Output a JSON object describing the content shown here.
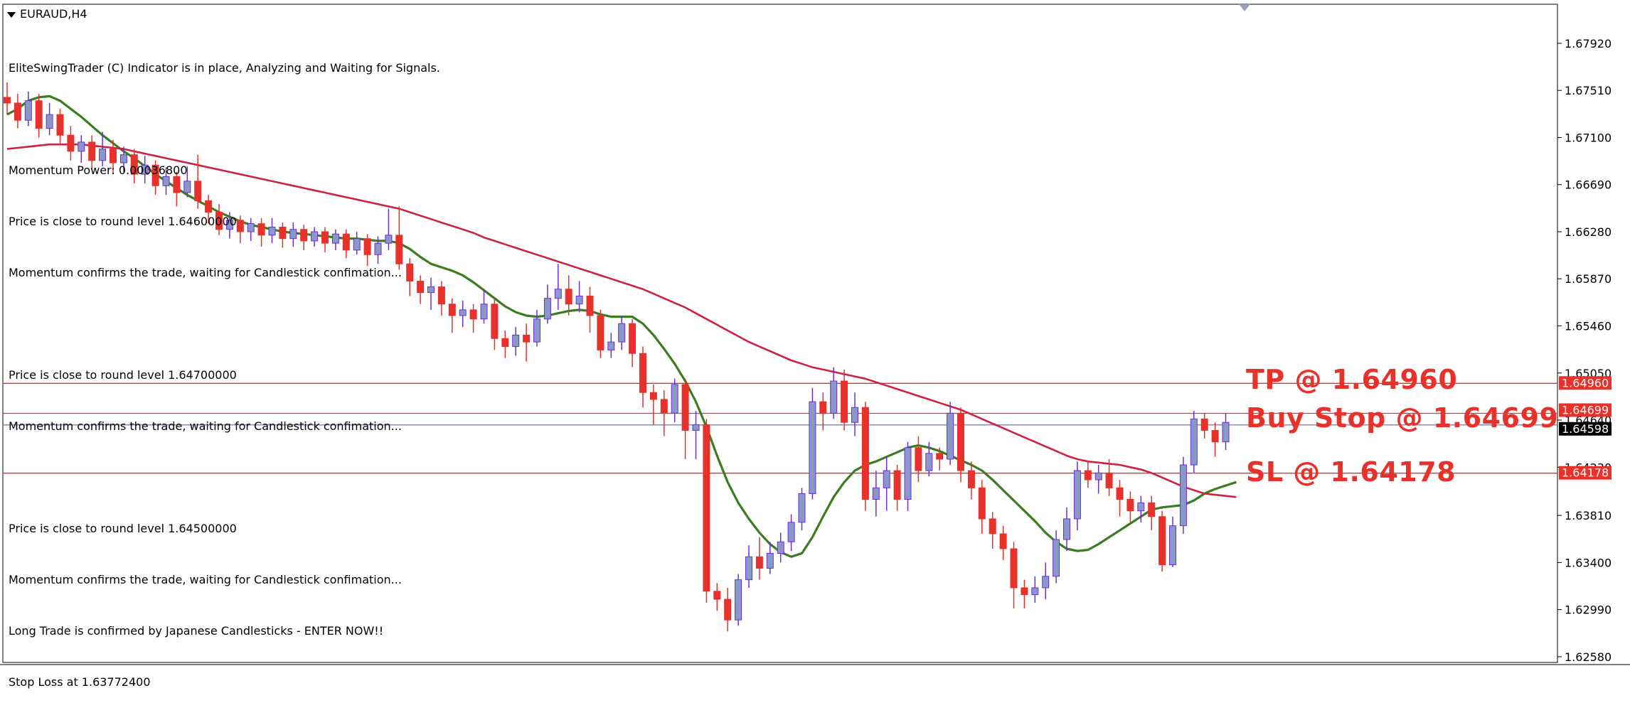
{
  "window": {
    "symbol_title": "EURAUD,H4"
  },
  "info_lines": [
    "EliteSwingTrader (C) Indicator is in place, Analyzing and Waiting for Signals.",
    "",
    "Momentum Power: 0.00036800",
    "Price is close to round level 1.64600000",
    "Momentum confirms the trade, waiting for Candlestick confimation...",
    "",
    "Price is close to round level 1.64700000",
    "Momentum confirms the trade, waiting for Candlestick confimation...",
    "",
    "Price is close to round level 1.64500000",
    "Momentum confirms the trade, waiting for Candlestick confimation...",
    "Long Trade is confirmed by Japanese Candlesticks - ENTER NOW!!",
    "Stop Loss at 1.63772400"
  ],
  "annotations": {
    "tp": "TP @ 1.64960",
    "buy_stop": "Buy Stop @ 1.64699",
    "sl": "SL @ 1.64178"
  },
  "colors": {
    "background": "#ffffff",
    "bull_candle_body": "#8a97c9",
    "bull_candle_wick": "#6a2fd8",
    "bear_candle": "#e8312a",
    "fast_ma": "#3a7d1e",
    "slow_ma": "#cc2244",
    "level_line": "#e8312a",
    "bid_line": "#7b83b8",
    "annotation_text": "#e8312a"
  },
  "chart_data": {
    "type": "candlestick",
    "symbol": "EURAUD",
    "timeframe": "H4",
    "ylim": [
      1.6253,
      1.6826
    ],
    "y_ticks": [
      "1.67920",
      "1.67510",
      "1.67100",
      "1.66690",
      "1.66280",
      "1.65870",
      "1.65460",
      "1.65050",
      "1.64640",
      "1.64230",
      "1.63810",
      "1.63400",
      "1.62990",
      "1.62580"
    ],
    "levels": [
      {
        "label": "1.64960",
        "value": 1.6496,
        "color": "#e8312a",
        "text_color": "#ffffff"
      },
      {
        "label": "1.64699",
        "value": 1.64699,
        "color": "#e8312a",
        "text_color": "#ffffff"
      },
      {
        "label": "1.64598",
        "value": 1.64598,
        "color": "#000000",
        "text_color": "#ffffff"
      },
      {
        "label": "1.64178",
        "value": 1.64178,
        "color": "#e8312a",
        "text_color": "#ffffff"
      }
    ],
    "candles": [
      [
        1.6745,
        1.674,
        1.6758,
        1.673
      ],
      [
        1.674,
        1.6725,
        1.6748,
        1.6718
      ],
      [
        1.6725,
        1.6742,
        1.675,
        1.672
      ],
      [
        1.6742,
        1.6718,
        1.6748,
        1.671
      ],
      [
        1.6718,
        1.673,
        1.674,
        1.6712
      ],
      [
        1.673,
        1.6712,
        1.6735,
        1.6705
      ],
      [
        1.6712,
        1.6698,
        1.672,
        1.669
      ],
      [
        1.6698,
        1.6706,
        1.6712,
        1.6688
      ],
      [
        1.6706,
        1.669,
        1.6712,
        1.6682
      ],
      [
        1.669,
        1.67,
        1.6715,
        1.6685
      ],
      [
        1.67,
        1.6688,
        1.6708,
        1.6678
      ],
      [
        1.6688,
        1.6695,
        1.6702,
        1.668
      ],
      [
        1.6695,
        1.6678,
        1.67,
        1.667
      ],
      [
        1.6678,
        1.6686,
        1.6694,
        1.667
      ],
      [
        1.6686,
        1.6668,
        1.669,
        1.666
      ],
      [
        1.6668,
        1.6676,
        1.6684,
        1.666
      ],
      [
        1.6676,
        1.6662,
        1.668,
        1.665
      ],
      [
        1.6662,
        1.6672,
        1.6685,
        1.6658
      ],
      [
        1.6672,
        1.6655,
        1.6695,
        1.6648
      ],
      [
        1.6655,
        1.6645,
        1.666,
        1.6635
      ],
      [
        1.6645,
        1.663,
        1.6652,
        1.6625
      ],
      [
        1.663,
        1.6638,
        1.6645,
        1.6622
      ],
      [
        1.6638,
        1.6628,
        1.6642,
        1.6618
      ],
      [
        1.6628,
        1.6635,
        1.664,
        1.662
      ],
      [
        1.6635,
        1.6625,
        1.664,
        1.6615
      ],
      [
        1.6625,
        1.6632,
        1.664,
        1.6618
      ],
      [
        1.6632,
        1.6622,
        1.6636,
        1.6614
      ],
      [
        1.6622,
        1.663,
        1.6636,
        1.6615
      ],
      [
        1.663,
        1.662,
        1.6634,
        1.6612
      ],
      [
        1.662,
        1.6628,
        1.6632,
        1.6615
      ],
      [
        1.6628,
        1.6618,
        1.6632,
        1.661
      ],
      [
        1.6618,
        1.6626,
        1.663,
        1.6612
      ],
      [
        1.6626,
        1.6612,
        1.663,
        1.6605
      ],
      [
        1.6612,
        1.6622,
        1.6628,
        1.6608
      ],
      [
        1.6622,
        1.6608,
        1.6626,
        1.6598
      ],
      [
        1.6608,
        1.6618,
        1.6624,
        1.66
      ],
      [
        1.6618,
        1.6625,
        1.6648,
        1.6612
      ],
      [
        1.6625,
        1.66,
        1.665,
        1.6595
      ],
      [
        1.66,
        1.6585,
        1.6605,
        1.6572
      ],
      [
        1.6585,
        1.6575,
        1.659,
        1.6565
      ],
      [
        1.6575,
        1.658,
        1.6588,
        1.656
      ],
      [
        1.658,
        1.6565,
        1.6585,
        1.6555
      ],
      [
        1.6565,
        1.6555,
        1.657,
        1.654
      ],
      [
        1.6555,
        1.656,
        1.6568,
        1.6545
      ],
      [
        1.656,
        1.6552,
        1.6565,
        1.654
      ],
      [
        1.6552,
        1.6565,
        1.6578,
        1.6548
      ],
      [
        1.6565,
        1.6535,
        1.657,
        1.6525
      ],
      [
        1.6535,
        1.6528,
        1.6542,
        1.6518
      ],
      [
        1.6528,
        1.6538,
        1.6545,
        1.652
      ],
      [
        1.6538,
        1.6532,
        1.6548,
        1.6515
      ],
      [
        1.6532,
        1.6552,
        1.656,
        1.6528
      ],
      [
        1.6552,
        1.657,
        1.6582,
        1.6548
      ],
      [
        1.657,
        1.6578,
        1.66,
        1.656
      ],
      [
        1.6578,
        1.6565,
        1.659,
        1.6555
      ],
      [
        1.6565,
        1.6572,
        1.6585,
        1.6558
      ],
      [
        1.6572,
        1.6555,
        1.658,
        1.654
      ],
      [
        1.6555,
        1.6525,
        1.656,
        1.6518
      ],
      [
        1.6525,
        1.6532,
        1.654,
        1.6518
      ],
      [
        1.6532,
        1.6548,
        1.6555,
        1.6525
      ],
      [
        1.6548,
        1.6522,
        1.6552,
        1.651
      ],
      [
        1.6522,
        1.6488,
        1.6528,
        1.6475
      ],
      [
        1.6488,
        1.6482,
        1.6495,
        1.646
      ],
      [
        1.6482,
        1.647,
        1.649,
        1.645
      ],
      [
        1.647,
        1.6495,
        1.65,
        1.6462
      ],
      [
        1.6495,
        1.6455,
        1.65,
        1.643
      ],
      [
        1.6455,
        1.646,
        1.6472,
        1.643
      ],
      [
        1.646,
        1.6315,
        1.6465,
        1.6305
      ],
      [
        1.6315,
        1.6308,
        1.6322,
        1.6298
      ],
      [
        1.6308,
        1.629,
        1.6318,
        1.628
      ],
      [
        1.629,
        1.6325,
        1.633,
        1.6285
      ],
      [
        1.6325,
        1.6345,
        1.6355,
        1.6318
      ],
      [
        1.6345,
        1.6335,
        1.6362,
        1.6325
      ],
      [
        1.6335,
        1.6348,
        1.6358,
        1.633
      ],
      [
        1.6348,
        1.6358,
        1.6366,
        1.634
      ],
      [
        1.6358,
        1.6375,
        1.6382,
        1.635
      ],
      [
        1.6375,
        1.64,
        1.6405,
        1.6368
      ],
      [
        1.64,
        1.648,
        1.6492,
        1.6395
      ],
      [
        1.648,
        1.647,
        1.6488,
        1.6455
      ],
      [
        1.647,
        1.6498,
        1.651,
        1.6465
      ],
      [
        1.6498,
        1.6462,
        1.6508,
        1.6455
      ],
      [
        1.6462,
        1.6475,
        1.6488,
        1.645
      ],
      [
        1.6475,
        1.6395,
        1.648,
        1.6385
      ],
      [
        1.6395,
        1.6405,
        1.642,
        1.638
      ],
      [
        1.6405,
        1.642,
        1.6432,
        1.6385
      ],
      [
        1.642,
        1.6395,
        1.6425,
        1.6385
      ],
      [
        1.6395,
        1.644,
        1.6445,
        1.6385
      ],
      [
        1.644,
        1.642,
        1.645,
        1.641
      ],
      [
        1.642,
        1.6435,
        1.6445,
        1.6415
      ],
      [
        1.6435,
        1.643,
        1.644,
        1.642
      ],
      [
        1.643,
        1.647,
        1.648,
        1.6425
      ],
      [
        1.647,
        1.642,
        1.6475,
        1.641
      ],
      [
        1.642,
        1.6405,
        1.6428,
        1.6395
      ],
      [
        1.6405,
        1.6378,
        1.6412,
        1.6365
      ],
      [
        1.6378,
        1.6365,
        1.6384,
        1.6352
      ],
      [
        1.6365,
        1.6352,
        1.6372,
        1.6342
      ],
      [
        1.6352,
        1.6318,
        1.6358,
        1.63
      ],
      [
        1.6318,
        1.6312,
        1.6325,
        1.63
      ],
      [
        1.6312,
        1.6318,
        1.6328,
        1.6305
      ],
      [
        1.6318,
        1.6328,
        1.634,
        1.6308
      ],
      [
        1.6328,
        1.636,
        1.6368,
        1.6322
      ],
      [
        1.636,
        1.6378,
        1.6388,
        1.635
      ],
      [
        1.6378,
        1.642,
        1.6428,
        1.6368
      ],
      [
        1.642,
        1.6412,
        1.6428,
        1.6405
      ],
      [
        1.6412,
        1.6418,
        1.6425,
        1.64
      ],
      [
        1.6418,
        1.6405,
        1.643,
        1.6398
      ],
      [
        1.6405,
        1.6395,
        1.6412,
        1.638
      ],
      [
        1.6395,
        1.6385,
        1.6402,
        1.6375
      ],
      [
        1.6385,
        1.6392,
        1.6398,
        1.6375
      ],
      [
        1.6392,
        1.638,
        1.6398,
        1.6368
      ],
      [
        1.638,
        1.6338,
        1.6385,
        1.6332
      ],
      [
        1.6338,
        1.6372,
        1.638,
        1.6336
      ],
      [
        1.6372,
        1.6425,
        1.6432,
        1.6365
      ],
      [
        1.6425,
        1.6465,
        1.6472,
        1.6418
      ],
      [
        1.6465,
        1.6455,
        1.647,
        1.6448
      ],
      [
        1.6455,
        1.6445,
        1.6462,
        1.6432
      ],
      [
        1.6445,
        1.6462,
        1.647,
        1.6438
      ]
    ],
    "series": [
      {
        "name": "",
        "color": "#3a7d1e",
        "values": [
          1.673,
          1.6735,
          1.6742,
          1.6745,
          1.6746,
          1.6742,
          1.6735,
          1.6728,
          1.672,
          1.6712,
          1.6705,
          1.6698,
          1.6692,
          1.6685,
          1.6678,
          1.6672,
          1.6666,
          1.666,
          1.6655,
          1.665,
          1.6645,
          1.6641,
          1.6637,
          1.6634,
          1.6632,
          1.663,
          1.6628,
          1.6627,
          1.6626,
          1.6625,
          1.6624,
          1.6623,
          1.6622,
          1.6622,
          1.6621,
          1.662,
          1.662,
          1.6618,
          1.6613,
          1.6606,
          1.66,
          1.6597,
          1.6594,
          1.659,
          1.6584,
          1.6577,
          1.657,
          1.6563,
          1.6558,
          1.6555,
          1.6554,
          1.6555,
          1.6557,
          1.6559,
          1.656,
          1.6559,
          1.6556,
          1.6554,
          1.6554,
          1.6554,
          1.6548,
          1.6538,
          1.6526,
          1.6513,
          1.6498,
          1.648,
          1.6458,
          1.6433,
          1.641,
          1.6392,
          1.6378,
          1.6366,
          1.6356,
          1.6349,
          1.6345,
          1.6348,
          1.6362,
          1.638,
          1.6397,
          1.641,
          1.642,
          1.6425,
          1.6428,
          1.6432,
          1.6436,
          1.644,
          1.6442,
          1.644,
          1.6437,
          1.6433,
          1.6429,
          1.6425,
          1.642,
          1.6412,
          1.6403,
          1.6394,
          1.6385,
          1.6376,
          1.6366,
          1.6358,
          1.6352,
          1.635,
          1.6351,
          1.6356,
          1.6362,
          1.6368,
          1.6374,
          1.638,
          1.6386,
          1.6388,
          1.6389,
          1.639,
          1.6394,
          1.64,
          1.6404,
          1.6407,
          1.641
        ]
      },
      {
        "name": "",
        "color": "#cc2244",
        "values": [
          1.67,
          1.6701,
          1.6702,
          1.6703,
          1.6704,
          1.6704,
          1.6704,
          1.6704,
          1.6703,
          1.6702,
          1.6701,
          1.67,
          1.6698,
          1.6696,
          1.6694,
          1.6692,
          1.669,
          1.6688,
          1.6686,
          1.6684,
          1.6682,
          1.668,
          1.6678,
          1.6676,
          1.6674,
          1.6672,
          1.667,
          1.6668,
          1.6666,
          1.6664,
          1.6662,
          1.666,
          1.6658,
          1.6656,
          1.6654,
          1.6652,
          1.665,
          1.6648,
          1.6645,
          1.6642,
          1.6639,
          1.6636,
          1.6633,
          1.663,
          1.6627,
          1.6623,
          1.662,
          1.6617,
          1.6614,
          1.6611,
          1.6608,
          1.6605,
          1.6602,
          1.6599,
          1.6596,
          1.6593,
          1.659,
          1.6587,
          1.6584,
          1.6581,
          1.6578,
          1.6574,
          1.657,
          1.6566,
          1.6562,
          1.6557,
          1.6552,
          1.6547,
          1.6542,
          1.6537,
          1.6532,
          1.6528,
          1.6524,
          1.652,
          1.6516,
          1.6513,
          1.651,
          1.6508,
          1.6506,
          1.6504,
          1.6502,
          1.65,
          1.6497,
          1.6494,
          1.6491,
          1.6488,
          1.6485,
          1.6482,
          1.6479,
          1.6476,
          1.6473,
          1.6469,
          1.6465,
          1.6461,
          1.6457,
          1.6453,
          1.6449,
          1.6445,
          1.6441,
          1.6437,
          1.6433,
          1.643,
          1.6428,
          1.6427,
          1.6426,
          1.6425,
          1.6423,
          1.6421,
          1.6418,
          1.6414,
          1.641,
          1.6406,
          1.6403,
          1.64,
          1.6399,
          1.6398,
          1.6397
        ]
      }
    ]
  }
}
